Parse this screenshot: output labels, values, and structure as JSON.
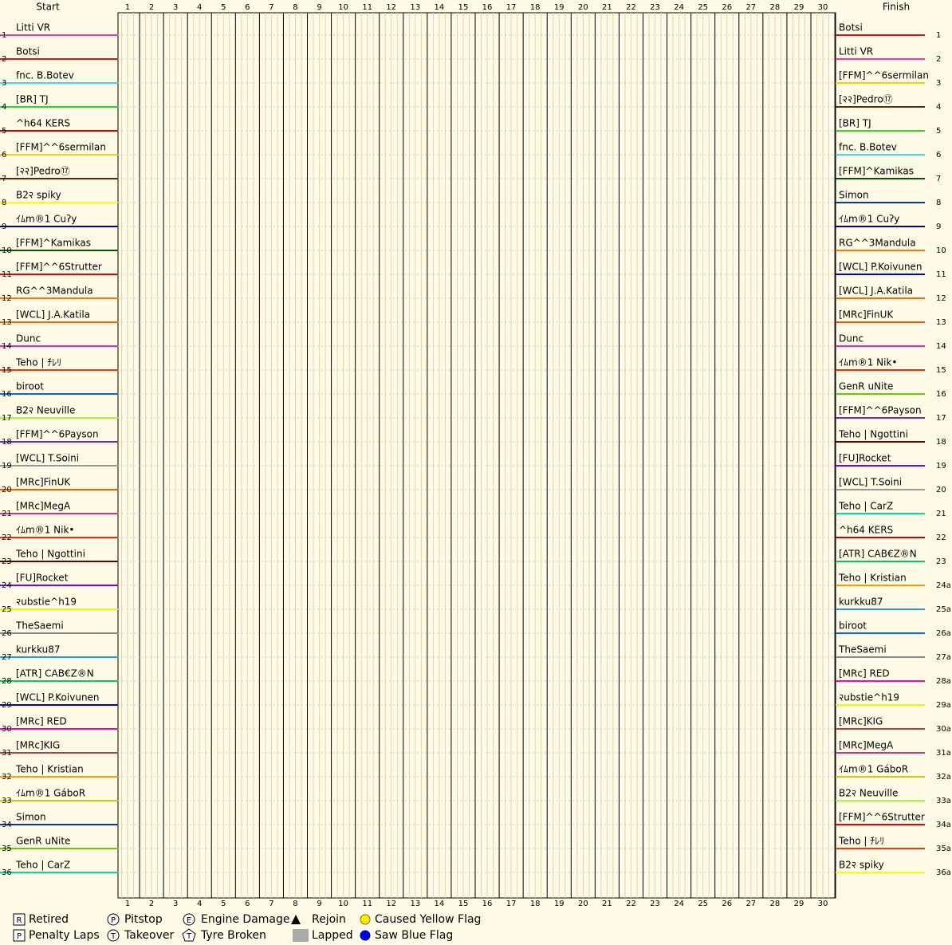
{
  "chart_data": {
    "type": "lap",
    "start_title": "Start",
    "finish_title": "Finish",
    "laps": [
      1,
      2,
      3,
      4,
      5,
      6,
      7,
      8,
      9,
      10,
      11,
      12,
      13,
      14,
      15,
      16,
      17,
      18,
      19,
      20,
      21,
      22,
      23,
      24,
      25,
      26,
      27,
      28,
      29,
      30
    ],
    "start": [
      {
        "position": 1,
        "name": "Litti VR",
        "color": "#ff33aa"
      },
      {
        "position": 2,
        "name": "Botsi",
        "color": "#ee1111"
      },
      {
        "position": 3,
        "name": "fnc. B.Botev",
        "color": "#33ddff"
      },
      {
        "position": 4,
        "name": "[BR] TJ",
        "color": "#22dd22"
      },
      {
        "position": 5,
        "name": "^h64 KERS",
        "color": "#cc0000"
      },
      {
        "position": 6,
        "name": "[FFM]^^6sermilan",
        "color": "#ffcc00"
      },
      {
        "position": 7,
        "name": "[२२]Pedro⑰",
        "color": "#662200"
      },
      {
        "position": 8,
        "name": "B2२ spiky",
        "color": "#ffff00"
      },
      {
        "position": 9,
        "name": "ｲﾑm®1 Cuʔy",
        "color": "#0000aa"
      },
      {
        "position": 10,
        "name": "[FFM]^Kamikas",
        "color": "#005500"
      },
      {
        "position": 11,
        "name": "[FFM]^^6Strutter",
        "color": "#ee0000"
      },
      {
        "position": 12,
        "name": "RG^^3Mandula",
        "color": "#ff7700"
      },
      {
        "position": 13,
        "name": "[WCL] J.A.Katila",
        "color": "#ff6600"
      },
      {
        "position": 14,
        "name": "Dunc",
        "color": "#ee22cc"
      },
      {
        "position": 15,
        "name": "Teho | ﾁﾚﾘ",
        "color": "#ff3300"
      },
      {
        "position": 16,
        "name": "biroot",
        "color": "#0066ff"
      },
      {
        "position": 17,
        "name": "B2२ Neuville",
        "color": "#99ff33"
      },
      {
        "position": 18,
        "name": "[FFM]^^6Payson",
        "color": "#7722cc"
      },
      {
        "position": 19,
        "name": "[WCL] T.Soini",
        "color": "#999999"
      },
      {
        "position": 20,
        "name": "[MRc]FinUK",
        "color": "#ff5500"
      },
      {
        "position": 21,
        "name": "[MRc]MegA",
        "color": "#cc3388"
      },
      {
        "position": 22,
        "name": "ｲﾑm®1 Nik•",
        "color": "#ff2200"
      },
      {
        "position": 23,
        "name": "Teho | Ngottini",
        "color": "#660000"
      },
      {
        "position": 24,
        "name": "[FU]Rocket",
        "color": "#7700ff"
      },
      {
        "position": 25,
        "name": "२ubstie^h19",
        "color": "#ddff00"
      },
      {
        "position": 26,
        "name": "TheSaemi",
        "color": "#888888"
      },
      {
        "position": 27,
        "name": "kurkku87",
        "color": "#2299ff"
      },
      {
        "position": 28,
        "name": "[ATR] CAB€Z®N",
        "color": "#00cc66"
      },
      {
        "position": 29,
        "name": "[WCL] P.Koivunen",
        "color": "#0000cc"
      },
      {
        "position": 30,
        "name": "[MRc] RED",
        "color": "#ff00cc"
      },
      {
        "position": 31,
        "name": "[MRc]KIG",
        "color": "#aa4444"
      },
      {
        "position": 32,
        "name": "Teho | Kristian",
        "color": "#ff9900"
      },
      {
        "position": 33,
        "name": "ｲﾑm®1 GáboR",
        "color": "#cccc00"
      },
      {
        "position": 34,
        "name": "Simon",
        "color": "#0033cc"
      },
      {
        "position": 35,
        "name": "GenR uNite",
        "color": "#66cc00"
      },
      {
        "position": 36,
        "name": "Teho | CarZ",
        "color": "#00dd99"
      }
    ],
    "finish": [
      {
        "position": 1,
        "name": "Botsi",
        "color": "#ee1111"
      },
      {
        "position": 2,
        "name": "Litti VR",
        "color": "#ff33aa"
      },
      {
        "position": 3,
        "name": "[FFM]^^6sermilan",
        "color": "#ffcc00"
      },
      {
        "position": 4,
        "name": "[२२]Pedro⑰",
        "color": "#662200"
      },
      {
        "position": 5,
        "name": "[BR] TJ",
        "color": "#22dd22"
      },
      {
        "position": 6,
        "name": "fnc. B.Botev",
        "color": "#33ddff"
      },
      {
        "position": 7,
        "name": "[FFM]^Kamikas",
        "color": "#005500"
      },
      {
        "position": 8,
        "name": "Simon",
        "color": "#0033cc"
      },
      {
        "position": 9,
        "name": "ｲﾑm®1 Cuʔy",
        "color": "#0000aa"
      },
      {
        "position": 10,
        "name": "RG^^3Mandula",
        "color": "#ff7700"
      },
      {
        "position": 11,
        "name": "[WCL] P.Koivunen",
        "color": "#0000cc"
      },
      {
        "position": 12,
        "name": "[WCL] J.A.Katila",
        "color": "#ff6600"
      },
      {
        "position": 13,
        "name": "[MRc]FinUK",
        "color": "#ff5500"
      },
      {
        "position": 14,
        "name": "Dunc",
        "color": "#ee22cc"
      },
      {
        "position": 15,
        "name": "ｲﾑm®1 Nik•",
        "color": "#ff2200"
      },
      {
        "position": 16,
        "name": "GenR uNite",
        "color": "#66cc00"
      },
      {
        "position": 17,
        "name": "[FFM]^^6Payson",
        "color": "#7722cc"
      },
      {
        "position": 18,
        "name": "Teho | Ngottini",
        "color": "#660000"
      },
      {
        "position": 19,
        "name": "[FU]Rocket",
        "color": "#7700ff"
      },
      {
        "position": 20,
        "name": "[WCL] T.Soini",
        "color": "#999999"
      },
      {
        "position": 21,
        "name": "Teho | CarZ",
        "color": "#00dd99"
      },
      {
        "position": 22,
        "name": "^h64 KERS",
        "color": "#cc0000"
      },
      {
        "position": 23,
        "name": "[ATR] CAB€Z®N",
        "color": "#00cc66"
      },
      {
        "position": "24a",
        "name": "Teho | Kristian",
        "color": "#ff9900"
      },
      {
        "position": "25a",
        "name": "kurkku87",
        "color": "#2299ff"
      },
      {
        "position": "26a",
        "name": "biroot",
        "color": "#0066ff"
      },
      {
        "position": "27a",
        "name": "TheSaemi",
        "color": "#888888"
      },
      {
        "position": "28a",
        "name": "[MRc] RED",
        "color": "#ff00cc"
      },
      {
        "position": "29a",
        "name": "२ubstie^h19",
        "color": "#ddff00"
      },
      {
        "position": "30a",
        "name": "[MRc]KIG",
        "color": "#aa4444"
      },
      {
        "position": "31a",
        "name": "[MRc]MegA",
        "color": "#cc3388"
      },
      {
        "position": "32a",
        "name": "ｲﾑm®1 GáboR",
        "color": "#cccc00"
      },
      {
        "position": "33a",
        "name": "B2२ Neuville",
        "color": "#99ff33"
      },
      {
        "position": "34a",
        "name": "[FFM]^^6Strutter",
        "color": "#ee0000"
      },
      {
        "position": "35a",
        "name": "Teho | ﾁﾚﾘ",
        "color": "#ff3300"
      },
      {
        "position": "36a",
        "name": "B2२ spiky",
        "color": "#ffff00"
      }
    ],
    "legend": [
      {
        "symbol": "R",
        "label": "Retired"
      },
      {
        "symbol": "P",
        "label": "Penalty Laps"
      },
      {
        "symbol": "P",
        "label": "Pitstop"
      },
      {
        "symbol": "T",
        "label": "Takeover"
      },
      {
        "symbol": "E",
        "label": "Engine Damage"
      },
      {
        "symbol": "T",
        "label": "Tyre Broken"
      },
      {
        "label": "Rejoin"
      },
      {
        "label": "Lapped"
      },
      {
        "label": "Caused Yellow Flag"
      },
      {
        "label": "Saw Blue Flag"
      }
    ]
  }
}
